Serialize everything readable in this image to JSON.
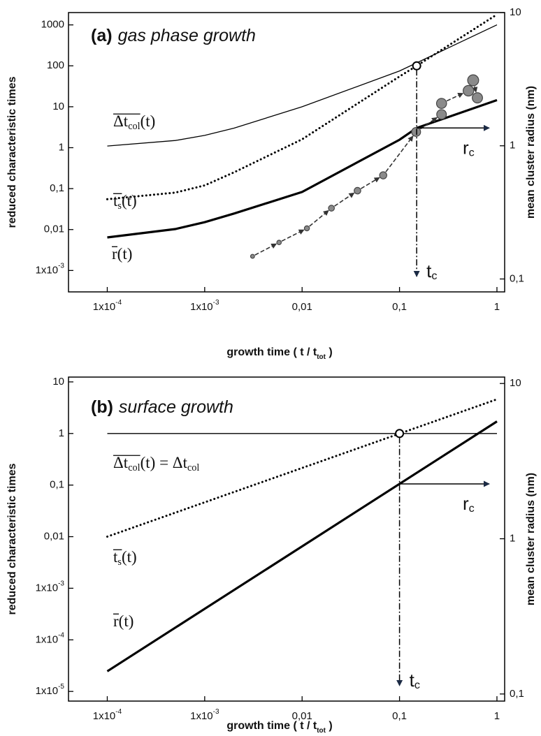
{
  "chart_data": [
    {
      "type": "line",
      "panel_label": "(a)",
      "title": "gas phase growth",
      "xlabel": {
        "text": "growth time   ( t / t",
        "sub": "tot",
        "tail": " )"
      },
      "ylabel": "reduced characteristic times",
      "y2label": "mean cluster radius  (nm)",
      "xlog": true,
      "ylog": true,
      "y2log": true,
      "xlim": [
        4e-05,
        1.2
      ],
      "ylim": [
        0.0003,
        2000
      ],
      "y2lim": [
        0.08,
        10
      ],
      "xticks": [
        {
          "value": 0.0001,
          "label": "1x10-4"
        },
        {
          "value": 0.001,
          "label": "1x10-3"
        },
        {
          "value": 0.01,
          "label": "0,01"
        },
        {
          "value": 0.1,
          "label": "0,1"
        },
        1
      ],
      "yticks": [
        {
          "value": 0.001,
          "label": "1x10-3"
        },
        {
          "value": 0.01,
          "label": "0,01"
        },
        {
          "value": 0.1,
          "label": "0,1"
        },
        1,
        10,
        100,
        1000
      ],
      "y2ticks": [
        {
          "value": 0.1,
          "label": "0,1"
        },
        1,
        10
      ],
      "series": [
        {
          "name": {
            "text": "Δt",
            "sub": "col",
            "tail": "(t)"
          },
          "style": "thin",
          "color": "#000000",
          "x": [
            0.0001,
            0.0005,
            0.001,
            0.002,
            0.01,
            0.1,
            1
          ],
          "values": [
            1.1,
            1.5,
            2,
            3,
            10,
            75,
            1000
          ]
        },
        {
          "name": {
            "text": "t",
            "sub": "s",
            "tail": "(t)"
          },
          "style": "dotted",
          "color": "#000000",
          "x": [
            0.0001,
            0.0005,
            0.001,
            0.002,
            0.01,
            0.1,
            0.15,
            1
          ],
          "values": [
            0.055,
            0.08,
            0.12,
            0.25,
            1.6,
            55,
            100,
            1800
          ]
        },
        {
          "name": {
            "text": "r",
            "tail": "(t)"
          },
          "style": "thick",
          "color": "#000000",
          "axis": "y2",
          "x": [
            0.0001,
            0.0005,
            0.001,
            0.002,
            0.01,
            0.1,
            0.15,
            1
          ],
          "values": [
            0.205,
            0.237,
            0.267,
            0.31,
            0.45,
            1.11,
            1.36,
            2.2
          ]
        },
        {
          "style": "scatter",
          "color": "#8a8a8a",
          "axis": "y2",
          "x": [
            0.0031,
            0.0058,
            0.0112,
            0.02,
            0.037,
            0.068,
            0.148,
            0.27,
            0.27,
            0.51,
            0.57,
            0.63
          ],
          "values": [
            0.148,
            0.188,
            0.24,
            0.34,
            0.46,
            0.6,
            1.27,
            1.72,
            2.08,
            2.59,
            3.1,
            2.29
          ]
        }
      ],
      "crossing": {
        "x": 0.15,
        "y": 100
      },
      "tc_label": {
        "text": "t",
        "sub": "c"
      },
      "rc_label": {
        "text": "r",
        "sub": "c"
      }
    },
    {
      "type": "line",
      "panel_label": "(b)",
      "title": "surface growth",
      "xlabel": {
        "text": "growth time ( t / t",
        "sub": "tot",
        "tail": " )"
      },
      "ylabel": "reduced characteristic times",
      "y2label": "mean cluster radius (nm)",
      "xlog": true,
      "ylog": true,
      "y2log": true,
      "xlim": [
        4e-05,
        1.2
      ],
      "ylim": [
        6.5e-06,
        12.4
      ],
      "y2lim": [
        0.09,
        11
      ],
      "xticks": [
        {
          "value": 0.0001,
          "label": "1x10-4"
        },
        {
          "value": 0.001,
          "label": "1x10-3"
        },
        {
          "value": 0.01,
          "label": "0,01"
        },
        {
          "value": 0.1,
          "label": "0,1"
        },
        1
      ],
      "yticks": [
        {
          "value": 1e-05,
          "label": "1x10-5"
        },
        {
          "value": 0.0001,
          "label": "1x10-4"
        },
        {
          "value": 0.001,
          "label": "1x10-3"
        },
        {
          "value": 0.01,
          "label": "0,01"
        },
        {
          "value": 0.1,
          "label": "0,1"
        },
        1,
        10
      ],
      "y2ticks": [
        {
          "value": 0.1,
          "label": "0,1"
        },
        1,
        10
      ],
      "series": [
        {
          "name": {
            "text": "Δt",
            "sub": "col",
            "tail": "(t) = Δt",
            "tail_sub": "col"
          },
          "style": "thin",
          "color": "#000000",
          "x": [
            0.0001,
            1
          ],
          "values": [
            1,
            1
          ]
        },
        {
          "name": {
            "text": "t",
            "sub": "s",
            "tail": "(t)"
          },
          "style": "dotted",
          "color": "#000000",
          "x": [
            0.0001,
            1
          ],
          "values": [
            0.01,
            4.6
          ]
        },
        {
          "name": {
            "text": "r",
            "tail": "(t)"
          },
          "style": "thick",
          "color": "#000000",
          "axis": "y2",
          "x": [
            0.0001,
            1
          ],
          "values": [
            0.14,
            5.7
          ]
        }
      ],
      "crossing": {
        "x": 0.1,
        "y": 1
      },
      "tc_label": {
        "text": "t",
        "sub": "c"
      },
      "rc_label": {
        "text": "r",
        "sub": "c"
      }
    }
  ]
}
